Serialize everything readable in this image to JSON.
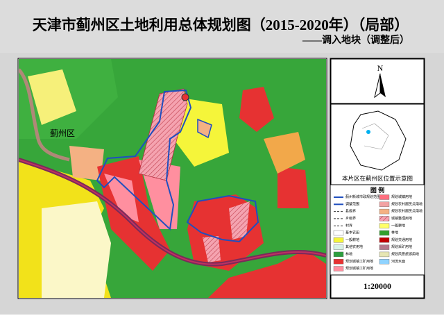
{
  "header": {
    "title": "天津市蓟州区土地利用总体规划图（2015-2020年）（局部）",
    "subtitle": "——调入地块（调整后）"
  },
  "map": {
    "place_label": "蓟州区"
  },
  "north_arrow": {
    "label": "N"
  },
  "inset": {
    "caption": "本片区在蓟州区位置示意图"
  },
  "legend": {
    "title": "图  例",
    "items": [
      {
        "label": "蓟州新城市政规划范围",
        "color": "#1f4fbf",
        "symbol": "line"
      },
      {
        "label": "规划城镇用地",
        "color": "#ff6f7f",
        "symbol": "fill"
      },
      {
        "label": "调整范围",
        "color": "#1f4fbf",
        "symbol": "line"
      },
      {
        "label": "规划农村居民点用地",
        "color": "#f2a3a3",
        "symbol": "fill"
      },
      {
        "label": "县级界",
        "color": "#333333",
        "symbol": "dash"
      },
      {
        "label": "规划农村居民点用地",
        "color": "#f4b183",
        "symbol": "fill"
      },
      {
        "label": "乡级界",
        "color": "#333333",
        "symbol": "dash"
      },
      {
        "label": "城镇整理用地",
        "color": "#e88a8a",
        "symbol": "hatch"
      },
      {
        "label": "村界",
        "color": "#333333",
        "symbol": "dash"
      },
      {
        "label": "一般耕地",
        "color": "#ffff66",
        "symbol": "fill"
      },
      {
        "label": "基本农田",
        "color": "#ffffff",
        "symbol": "fill"
      },
      {
        "label": "林地",
        "color": "#33a02c",
        "symbol": "fill"
      },
      {
        "label": "一般耕地",
        "color": "#f5f53a",
        "symbol": "fill"
      },
      {
        "label": "规划交通用地",
        "color": "#c00000",
        "symbol": "fill"
      },
      {
        "label": "其他农用地",
        "color": "#d9f2e6",
        "symbol": "fill"
      },
      {
        "label": "规划采矿用地",
        "color": "#b3798a",
        "symbol": "fill"
      },
      {
        "label": "林地",
        "color": "#2e9e3e",
        "symbol": "fill"
      },
      {
        "label": "规划风景旅游用地",
        "color": "#e6e6b3",
        "symbol": "fill"
      },
      {
        "label": "规划城镇工矿用地",
        "color": "#e63232",
        "symbol": "fill"
      },
      {
        "label": "河流水面",
        "color": "#8fd3ff",
        "symbol": "fill"
      },
      {
        "label": "规划城镇工矿用地",
        "color": "#ff8f9f",
        "symbol": "fill"
      }
    ]
  },
  "scale": "1:20000"
}
